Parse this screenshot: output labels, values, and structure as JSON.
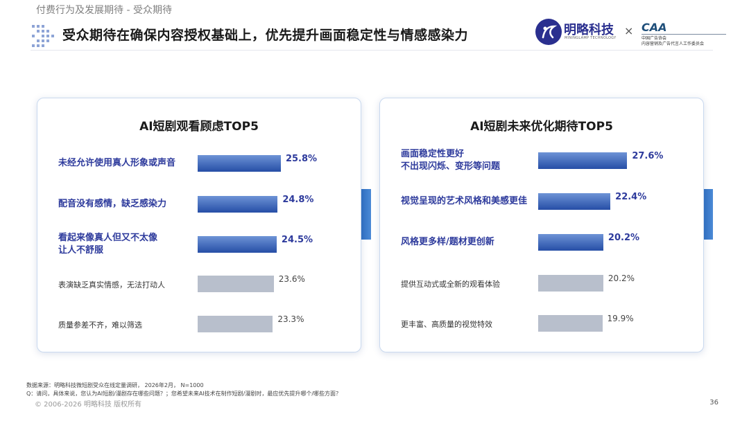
{
  "header": {
    "section": "付费行为及发展期待 - 受众期待",
    "title": "受众期待在确保内容授权基础上，优先提升画面稳定性与情感感染力"
  },
  "logos": {
    "minglue_name": "明略科技",
    "minglue_sub": "MININGLAMP TECHNOLOGY",
    "times": "×",
    "caa": "CAA",
    "caa_line1": "中国广告协会",
    "caa_line2": "内容营销及广告代言人工作委员会"
  },
  "chart_data": [
    {
      "type": "bar",
      "title": "AI短剧观看顾虑TOP5",
      "categories": [
        "未经允许使用真人形象或声音",
        "配音没有感情，缺乏感染力",
        "看起来像真人但又不太像\n让人不舒服",
        "表演缺乏真实情感，无法打动人",
        "质量参差不齐，难以筛选"
      ],
      "values": [
        25.8,
        24.8,
        24.5,
        23.6,
        23.3
      ],
      "value_labels": [
        "25.8%",
        "24.8%",
        "24.5%",
        "23.6%",
        "23.3%"
      ],
      "highlight": [
        true,
        true,
        true,
        false,
        false
      ],
      "colors": {
        "highlight": "#2b52a8",
        "other": "#b8bfcc"
      }
    },
    {
      "type": "bar",
      "title": "AI短剧未来优化期待TOP5",
      "categories": [
        "画面稳定性更好\n不出现闪烁、变形等问题",
        "视觉呈现的艺术风格和美感更佳",
        "风格更多样/题材更创新",
        "提供互动式或全新的观看体验",
        "更丰富、高质量的视觉特效"
      ],
      "values": [
        27.6,
        22.4,
        20.2,
        20.2,
        19.9
      ],
      "value_labels": [
        "27.6%",
        "22.4%",
        "20.2%",
        "20.2%",
        "19.9%"
      ],
      "highlight": [
        true,
        true,
        true,
        false,
        false
      ],
      "colors": {
        "highlight": "#2b52a8",
        "other": "#b8bfcc"
      }
    }
  ],
  "footer": {
    "source": "数据来源：明略科技微短剧受众在线定量调研， 2026年2月， N=1000",
    "question": "Q：请问，具体来说，您认为AI短剧/漫剧存在哪些问题？；您希望未来AI技术在制作短剧/漫剧时，最应优先提升哪个/哪些方面？",
    "copyright": "© 2006-2026 明略科技 版权所有",
    "page": "36"
  }
}
